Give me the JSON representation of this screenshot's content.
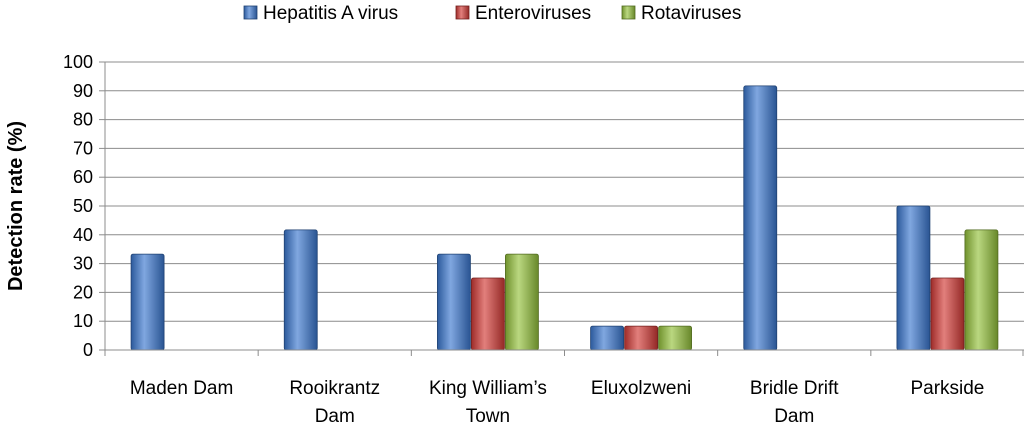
{
  "chart_data": {
    "type": "bar",
    "categories": [
      [
        "Maden Dam"
      ],
      [
        "Rooikrantz",
        "Dam"
      ],
      [
        "King William’s",
        "Town"
      ],
      [
        "Eluxolzweni"
      ],
      [
        "Bridle Drift",
        "Dam"
      ],
      [
        "Parkside"
      ]
    ],
    "series": [
      {
        "name": "Hepatitis A virus",
        "color": "#3b78d0",
        "values": [
          33.3,
          41.7,
          33.3,
          8.3,
          91.7,
          50.0
        ]
      },
      {
        "name": "Enteroviruses",
        "color": "#d33a36",
        "values": [
          null,
          null,
          25.0,
          8.3,
          null,
          25.0
        ]
      },
      {
        "name": "Rotaviruses",
        "color": "#95c23c",
        "values": [
          null,
          null,
          33.3,
          8.3,
          null,
          41.7
        ]
      }
    ],
    "ylabel": "Detection rate (%)",
    "ylim": [
      0,
      100
    ],
    "yticks": [
      0,
      10,
      20,
      30,
      40,
      50,
      60,
      70,
      80,
      90,
      100
    ],
    "grid": true,
    "legend": "top"
  }
}
